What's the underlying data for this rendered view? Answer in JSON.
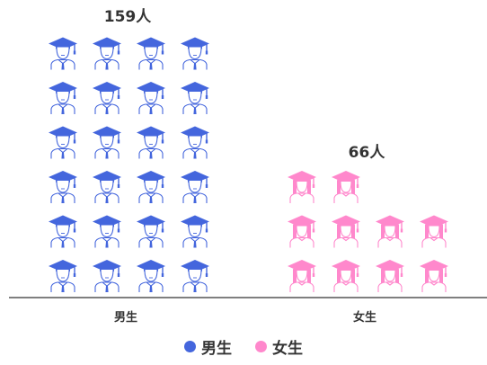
{
  "chart_data": {
    "type": "pictorial-bar",
    "categories": [
      "男生",
      "女生"
    ],
    "series": [
      {
        "name": "男生",
        "value": 159,
        "icon": "male-graduate-icon",
        "color": "#4466dd",
        "value_label": "159人"
      },
      {
        "name": "女生",
        "value": 66,
        "icon": "female-graduate-icon",
        "color": "#ff88cc",
        "value_label": "66人"
      }
    ],
    "icon_rows": {
      "男生": [
        4,
        4,
        4,
        4,
        4,
        4
      ],
      "女生": [
        4,
        4,
        2
      ]
    },
    "legend": {
      "position": "bottom",
      "items": [
        "男生",
        "女生"
      ]
    }
  }
}
